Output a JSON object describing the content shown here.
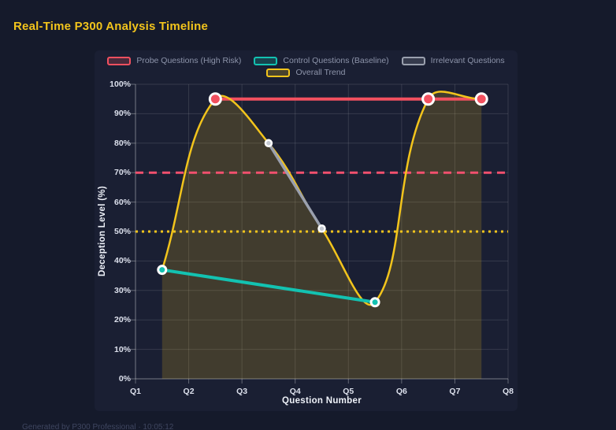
{
  "header": {
    "title": "Real-Time P300 Analysis Timeline"
  },
  "footer": {
    "text": "Generated by P300 Professional · 10:05:12"
  },
  "theme": {
    "page_bg": "#151a2b",
    "card_bg": "#1a1f33",
    "title_color": "#f2c41c",
    "probe_color": "#f2505f",
    "control_color": "#13c2b1",
    "irrelevant_color": "#9aa0ae",
    "trend_color": "#f2c41c",
    "threshold_high_color": "#f2506e",
    "threshold_mid_color": "#f2c41c"
  },
  "chart_data": {
    "type": "line",
    "title": "Real-Time P300 Analysis Timeline",
    "xlabel": "Question Number",
    "ylabel": "Deception Level (%)",
    "x_ticks": [
      "Q1",
      "Q2",
      "Q3",
      "Q4",
      "Q5",
      "Q6",
      "Q7",
      "Q8"
    ],
    "x_range": [
      1,
      8
    ],
    "y_ticks": [
      "0%",
      "10%",
      "20%",
      "30%",
      "40%",
      "50%",
      "60%",
      "70%",
      "80%",
      "90%",
      "100%"
    ],
    "y_range": [
      0,
      100
    ],
    "grid": true,
    "legend_position": "top",
    "series": [
      {
        "name": "Probe Questions (High Risk)",
        "color": "#f2505f",
        "x": [
          2.5,
          6.5,
          7.5
        ],
        "values": [
          95,
          95,
          95
        ],
        "line_width": 4,
        "point_radius": 7,
        "point_fill": "#f2505f",
        "point_stroke_width": 3,
        "smooth": false,
        "fill": false
      },
      {
        "name": "Control Questions (Baseline)",
        "color": "#13c2b1",
        "x": [
          1.5,
          5.5
        ],
        "values": [
          37,
          26
        ],
        "line_width": 4,
        "point_radius": 5,
        "point_fill": "#13c2b1",
        "point_stroke_width": 3,
        "smooth": false,
        "fill": false
      },
      {
        "name": "Irrelevant Questions",
        "color": "#9aa0ae",
        "x": [
          3.5,
          4.5
        ],
        "values": [
          80,
          51
        ],
        "line_width": 3.5,
        "point_radius": 4,
        "point_fill": "#c4c9d2",
        "point_stroke_width": 2.5,
        "smooth": false,
        "fill": false
      },
      {
        "name": "Overall Trend",
        "color": "#f2c41c",
        "x": [
          1.5,
          2.5,
          3.5,
          4.5,
          5.5,
          6.5,
          7.5
        ],
        "values": [
          37,
          95,
          80,
          51,
          26,
          95,
          95
        ],
        "line_width": 2.5,
        "point_radius": 0,
        "point_fill": "#f2c41c",
        "point_stroke_width": 0,
        "smooth": true,
        "fill": true,
        "fill_opacity": 0.18
      }
    ],
    "reference_lines": [
      {
        "value": 70,
        "color": "#f2506e",
        "style": "dashed",
        "width": 3
      },
      {
        "value": 50,
        "color": "#f2c41c",
        "style": "dotted",
        "width": 3
      }
    ]
  }
}
